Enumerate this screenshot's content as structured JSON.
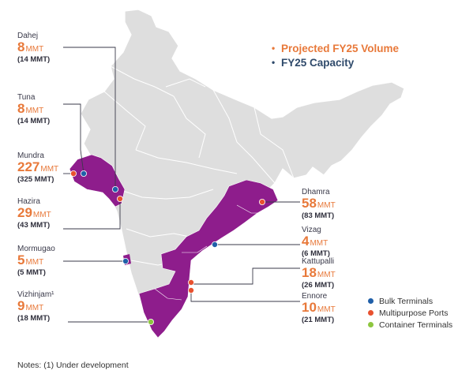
{
  "colors": {
    "orange": "#e8793a",
    "navy": "#2f4a6b",
    "blue": "#1f5fa8",
    "red": "#e8512f",
    "green": "#8dc63f",
    "purple": "#8e1d8c",
    "map_gray": "#dedede"
  },
  "legend_top": {
    "projected": "Projected FY25 Volume",
    "capacity": "FY25 Capacity"
  },
  "legend_bottom": [
    {
      "label": "Bulk Terminals",
      "color": "#1f5fa8"
    },
    {
      "label": "Multipurpose Ports",
      "color": "#e8512f"
    },
    {
      "label": "Container Terminals",
      "color": "#8dc63f"
    }
  ],
  "ports": [
    {
      "name": "Dahej",
      "volume": "8",
      "unit": "MMT",
      "capacity": "(14 MMT)"
    },
    {
      "name": "Tuna",
      "volume": "8",
      "unit": "MMT",
      "capacity": "(14 MMT)"
    },
    {
      "name": "Mundra",
      "volume": "227",
      "unit": "MMT",
      "capacity": "(325 MMT)"
    },
    {
      "name": "Hazira",
      "volume": "29",
      "unit": "MMT",
      "capacity": "(43 MMT)"
    },
    {
      "name": "Mormugao",
      "volume": "5",
      "unit": "MMT",
      "capacity": "(5 MMT)"
    },
    {
      "name": "Vizhinjam¹",
      "volume": "9",
      "unit": "MMT",
      "capacity": "(18 MMT)"
    },
    {
      "name": "Dhamra",
      "volume": "58",
      "unit": "MMT",
      "capacity": "(83 MMT)"
    },
    {
      "name": "Vizag",
      "volume": "4",
      "unit": "MMT",
      "capacity": "(6 MMT)"
    },
    {
      "name": "Kattupalli",
      "volume": "18",
      "unit": "MMT",
      "capacity": "(26 MMT)"
    },
    {
      "name": "Ennore",
      "volume": "10",
      "unit": "MMT",
      "capacity": "(21 MMT)"
    }
  ],
  "note": "Notes: (1) Under development"
}
